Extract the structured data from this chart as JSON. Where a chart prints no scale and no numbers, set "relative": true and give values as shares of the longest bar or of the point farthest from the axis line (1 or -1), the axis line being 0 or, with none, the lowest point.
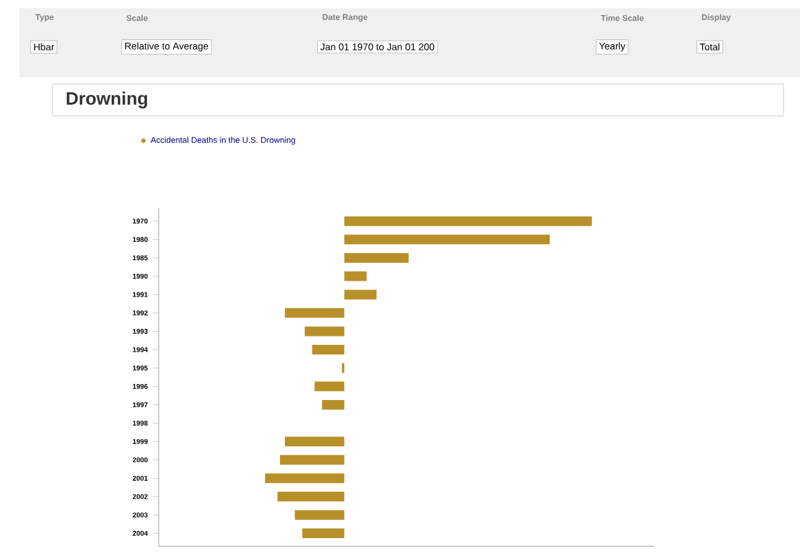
{
  "chart_data": {
    "type": "bar",
    "orientation": "horizontal",
    "relative": true,
    "title": "Drowning",
    "annotations": [
      "Type",
      "Hbar",
      "Scale",
      "Relative to Average",
      "Date Range",
      "Jan 01 1970 to Jan 01 200",
      "Time Scale",
      "Yearly",
      "Display",
      "Total"
    ],
    "categories": [
      "1970",
      "1980",
      "1985",
      "1990",
      "1991",
      "1992",
      "1993",
      "1994",
      "1995",
      "1996",
      "1997",
      "1998",
      "1999",
      "2000",
      "2001",
      "2002",
      "2003",
      "2004"
    ],
    "series": [
      {
        "name": "Accidental Deaths in the U.S. Drowning",
        "color": "#b8902a",
        "values": [
          1,
          0.83,
          0.26,
          0.09,
          0.13,
          -0.24,
          -0.16,
          -0.13,
          -0.01,
          -0.12,
          -0.09,
          0,
          -0.24,
          -0.26,
          -0.32,
          -0.27,
          -0.2,
          -0.17
        ]
      }
    ],
    "legend": "top left"
  }
}
